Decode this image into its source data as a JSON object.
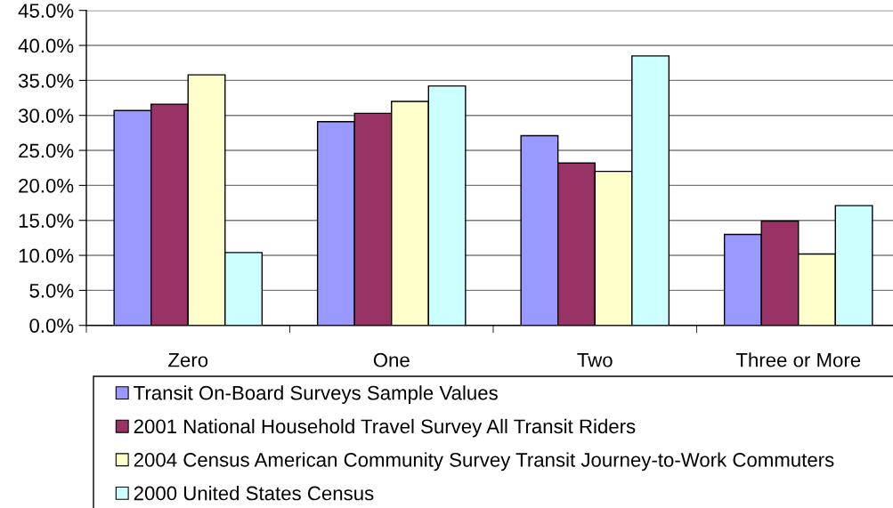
{
  "chart_data": {
    "type": "bar",
    "categories": [
      "Zero",
      "One",
      "Two",
      "Three or More"
    ],
    "series": [
      {
        "name": "Transit On-Board Surveys Sample Values",
        "color": "#9999ff",
        "values": [
          30.7,
          29.1,
          27.1,
          13.0
        ]
      },
      {
        "name": "2001 National Household Travel Survey All Transit Riders",
        "color": "#993366",
        "values": [
          31.6,
          30.3,
          23.2,
          14.9
        ]
      },
      {
        "name": "2004 Census American Community Survey Transit Journey-to-Work Commuters",
        "color": "#ffffcc",
        "values": [
          35.8,
          32.0,
          22.0,
          10.2
        ]
      },
      {
        "name": "2000 United States Census",
        "color": "#ccffff",
        "values": [
          10.4,
          34.2,
          38.5,
          17.1
        ]
      }
    ],
    "ylim": [
      0,
      45
    ],
    "yticks": [
      {
        "value": 0,
        "label": "0.0%"
      },
      {
        "value": 5,
        "label": "5.0%"
      },
      {
        "value": 10,
        "label": "10.0%"
      },
      {
        "value": 15,
        "label": "15.0%"
      },
      {
        "value": 20,
        "label": "20.0%"
      },
      {
        "value": 25,
        "label": "25.0%"
      },
      {
        "value": 30,
        "label": "30.0%"
      },
      {
        "value": 35,
        "label": "35.0%"
      },
      {
        "value": 40,
        "label": "40.0%"
      },
      {
        "value": 45,
        "label": "45.0%"
      }
    ],
    "grid": "y",
    "legend": "bottom"
  }
}
